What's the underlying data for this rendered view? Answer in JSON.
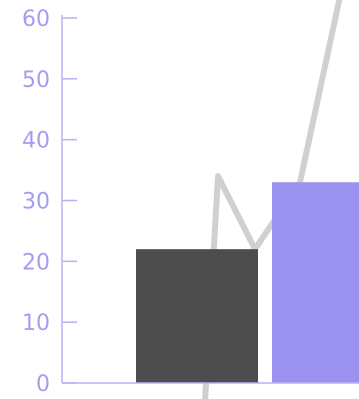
{
  "chart_data": {
    "type": "bar",
    "title": "",
    "xlabel": "",
    "ylabel": "",
    "ylim": [
      0,
      60
    ],
    "yticks": [
      0,
      10,
      20,
      30,
      40,
      50,
      60
    ],
    "grid": false,
    "categories": [
      "",
      ""
    ],
    "series": [
      {
        "values": [
          22,
          33
        ]
      }
    ],
    "bar_colors": [
      "#4d4d4d",
      "#9b91ee"
    ],
    "background_line": {
      "color": "#d0d0d0",
      "description_values": [
        -3,
        34,
        22,
        33,
        75
      ]
    },
    "colors": {
      "tick_text": "#a59ef0",
      "axis": "#b7b0f3"
    }
  }
}
